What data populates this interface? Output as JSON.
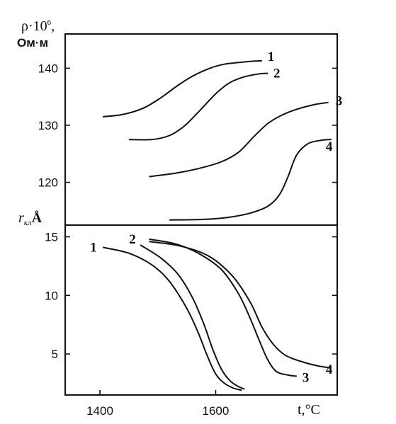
{
  "chart_data": [
    {
      "type": "line",
      "panel": "top",
      "ylabel_main": "ρ·10",
      "ylabel_exp": "6",
      "ylabel_suffix": ",",
      "yunit": "Ом·м",
      "xlim": [
        1340,
        1810
      ],
      "ylim": [
        112.5,
        146
      ],
      "yticks": [
        120,
        130,
        140
      ],
      "ytick_labels": [
        "120",
        "130",
        "140"
      ],
      "series": [
        {
          "name": "1",
          "x": [
            1405,
            1440,
            1475,
            1505,
            1535,
            1560,
            1590,
            1615,
            1640,
            1660,
            1680
          ],
          "y": [
            131.5,
            131.9,
            133,
            134.8,
            137,
            138.6,
            140,
            140.7,
            141,
            141.2,
            141.3
          ]
        },
        {
          "name": "2",
          "x": [
            1450,
            1490,
            1520,
            1545,
            1570,
            1600,
            1625,
            1650,
            1675,
            1690
          ],
          "y": [
            127.5,
            127.5,
            128.2,
            129.8,
            132.3,
            135.5,
            137.5,
            138.5,
            139,
            139.1
          ]
        },
        {
          "name": "3",
          "x": [
            1485,
            1530,
            1570,
            1610,
            1640,
            1665,
            1690,
            1715,
            1740,
            1770,
            1795
          ],
          "y": [
            121,
            121.6,
            122.4,
            123.6,
            125.3,
            127.9,
            130.3,
            131.8,
            132.8,
            133.6,
            134
          ]
        },
        {
          "name": "4",
          "x": [
            1520,
            1580,
            1625,
            1660,
            1690,
            1710,
            1725,
            1740,
            1760,
            1785,
            1800
          ],
          "y": [
            113.4,
            113.5,
            113.9,
            114.6,
            115.8,
            117.8,
            121,
            124.8,
            126.8,
            127.4,
            127.5
          ]
        }
      ]
    },
    {
      "type": "line",
      "panel": "bottom",
      "ylabel_main": "r",
      "ylabel_sub": "кл",
      "ylabel_unit": "Å",
      "xlabel_main": "t,",
      "xlabel_unit": "°C",
      "xlim": [
        1340,
        1810
      ],
      "ylim": [
        1.5,
        16
      ],
      "yticks": [
        5,
        10,
        15
      ],
      "ytick_labels": [
        "5",
        "10",
        "15"
      ],
      "xticks": [
        1400,
        1600
      ],
      "xtick_labels": [
        "1400",
        "1600"
      ],
      "series": [
        {
          "name": "1",
          "x": [
            1405,
            1450,
            1490,
            1520,
            1550,
            1570,
            1585,
            1600,
            1615,
            1630,
            1645
          ],
          "y": [
            14.1,
            13.6,
            12.6,
            11.2,
            8.9,
            6.8,
            4.9,
            3.3,
            2.5,
            2.1,
            1.9
          ]
        },
        {
          "name": "2",
          "x": [
            1470,
            1505,
            1535,
            1560,
            1580,
            1595,
            1610,
            1625,
            1640,
            1650
          ],
          "y": [
            14.3,
            13.2,
            11.8,
            9.8,
            7.5,
            5.4,
            3.7,
            2.7,
            2.2,
            2.0
          ]
        },
        {
          "name": "3",
          "x": [
            1485,
            1530,
            1570,
            1610,
            1640,
            1660,
            1675,
            1690,
            1705,
            1725,
            1740
          ],
          "y": [
            14.8,
            14.4,
            13.6,
            12.2,
            10.1,
            8.0,
            6.2,
            4.5,
            3.5,
            3.2,
            3.1
          ]
        },
        {
          "name": "4",
          "x": [
            1485,
            1540,
            1590,
            1630,
            1660,
            1680,
            1700,
            1720,
            1745,
            1775,
            1800
          ],
          "y": [
            14.6,
            14.2,
            13.3,
            11.6,
            9.4,
            7.3,
            5.8,
            4.9,
            4.4,
            4.0,
            3.8
          ]
        }
      ]
    }
  ]
}
